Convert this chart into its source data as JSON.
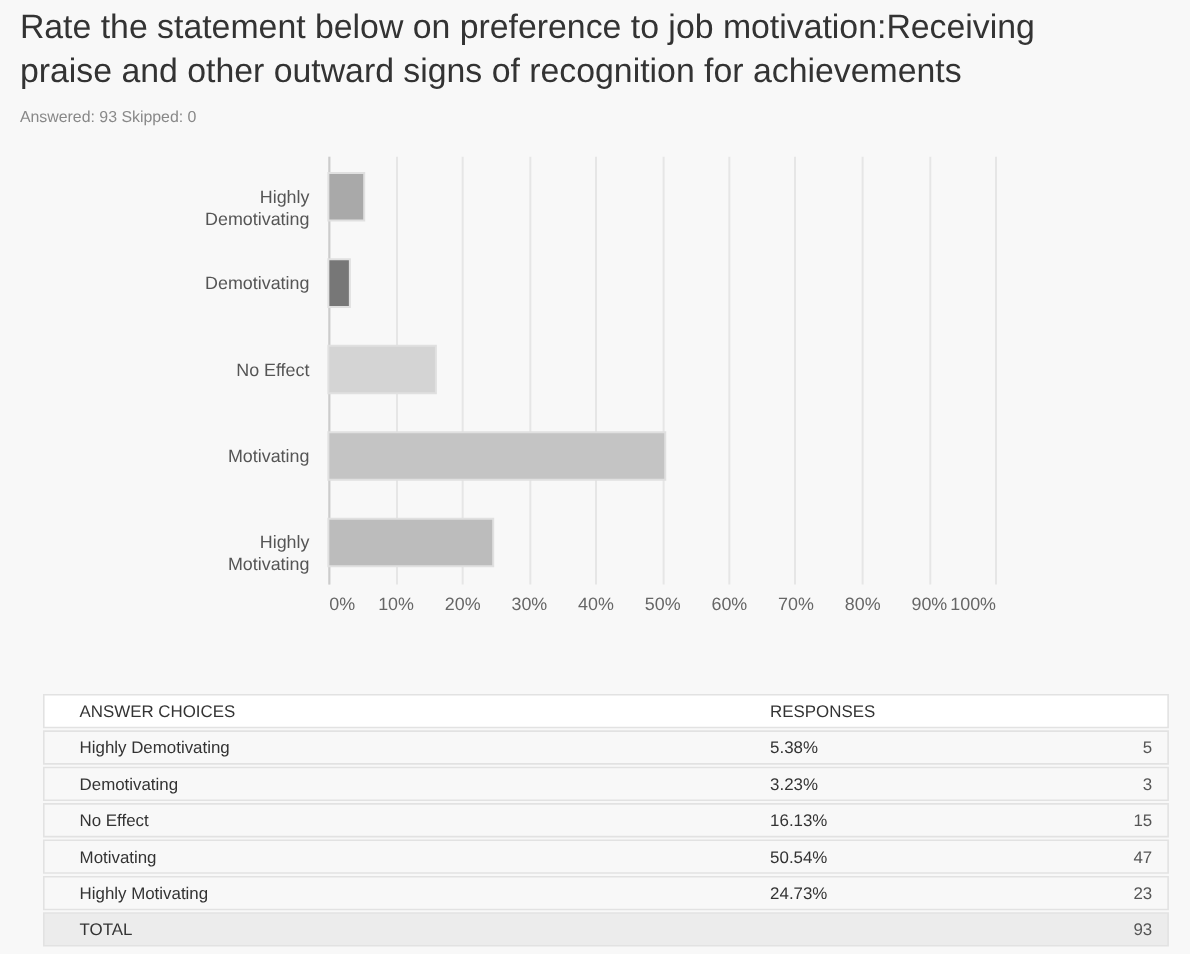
{
  "chart_data": {
    "type": "bar",
    "orientation": "horizontal",
    "title": "Rate the statement below on preference to job motivation:Receiving praise and other outward signs of recognition for achievements",
    "subtitle": "Answered: 93    Skipped: 0",
    "categories": [
      "Highly Demotivating",
      "Demotivating",
      "No Effect",
      "Motivating",
      "Highly Motivating"
    ],
    "values": [
      5.38,
      3.23,
      16.13,
      50.54,
      24.73
    ],
    "colors": [
      "#a9a9a9",
      "#777777",
      "#d4d4d4",
      "#c4c4c4",
      "#bcbcbc"
    ],
    "xlim": [
      0,
      100
    ],
    "xticks": [
      {
        "value": 0,
        "label": "0%"
      },
      {
        "value": 10,
        "label": "10%"
      },
      {
        "value": 20,
        "label": "20%"
      },
      {
        "value": 30,
        "label": "30%"
      },
      {
        "value": 40,
        "label": "40%"
      },
      {
        "value": 50,
        "label": "50%"
      },
      {
        "value": 60,
        "label": "60%"
      },
      {
        "value": 70,
        "label": "70%"
      },
      {
        "value": 80,
        "label": "80%"
      },
      {
        "value": 90,
        "label": "90%"
      },
      {
        "value": 100,
        "label": "100%"
      }
    ],
    "grid": "x",
    "annotations": [
      "ANSWER CHOICES",
      "RESPONSES",
      "5.38%",
      "5",
      "3.23%",
      "3",
      "16.13%",
      "15",
      "50.54%",
      "47",
      "24.73%",
      "23",
      "TOTAL",
      "93"
    ]
  }
}
